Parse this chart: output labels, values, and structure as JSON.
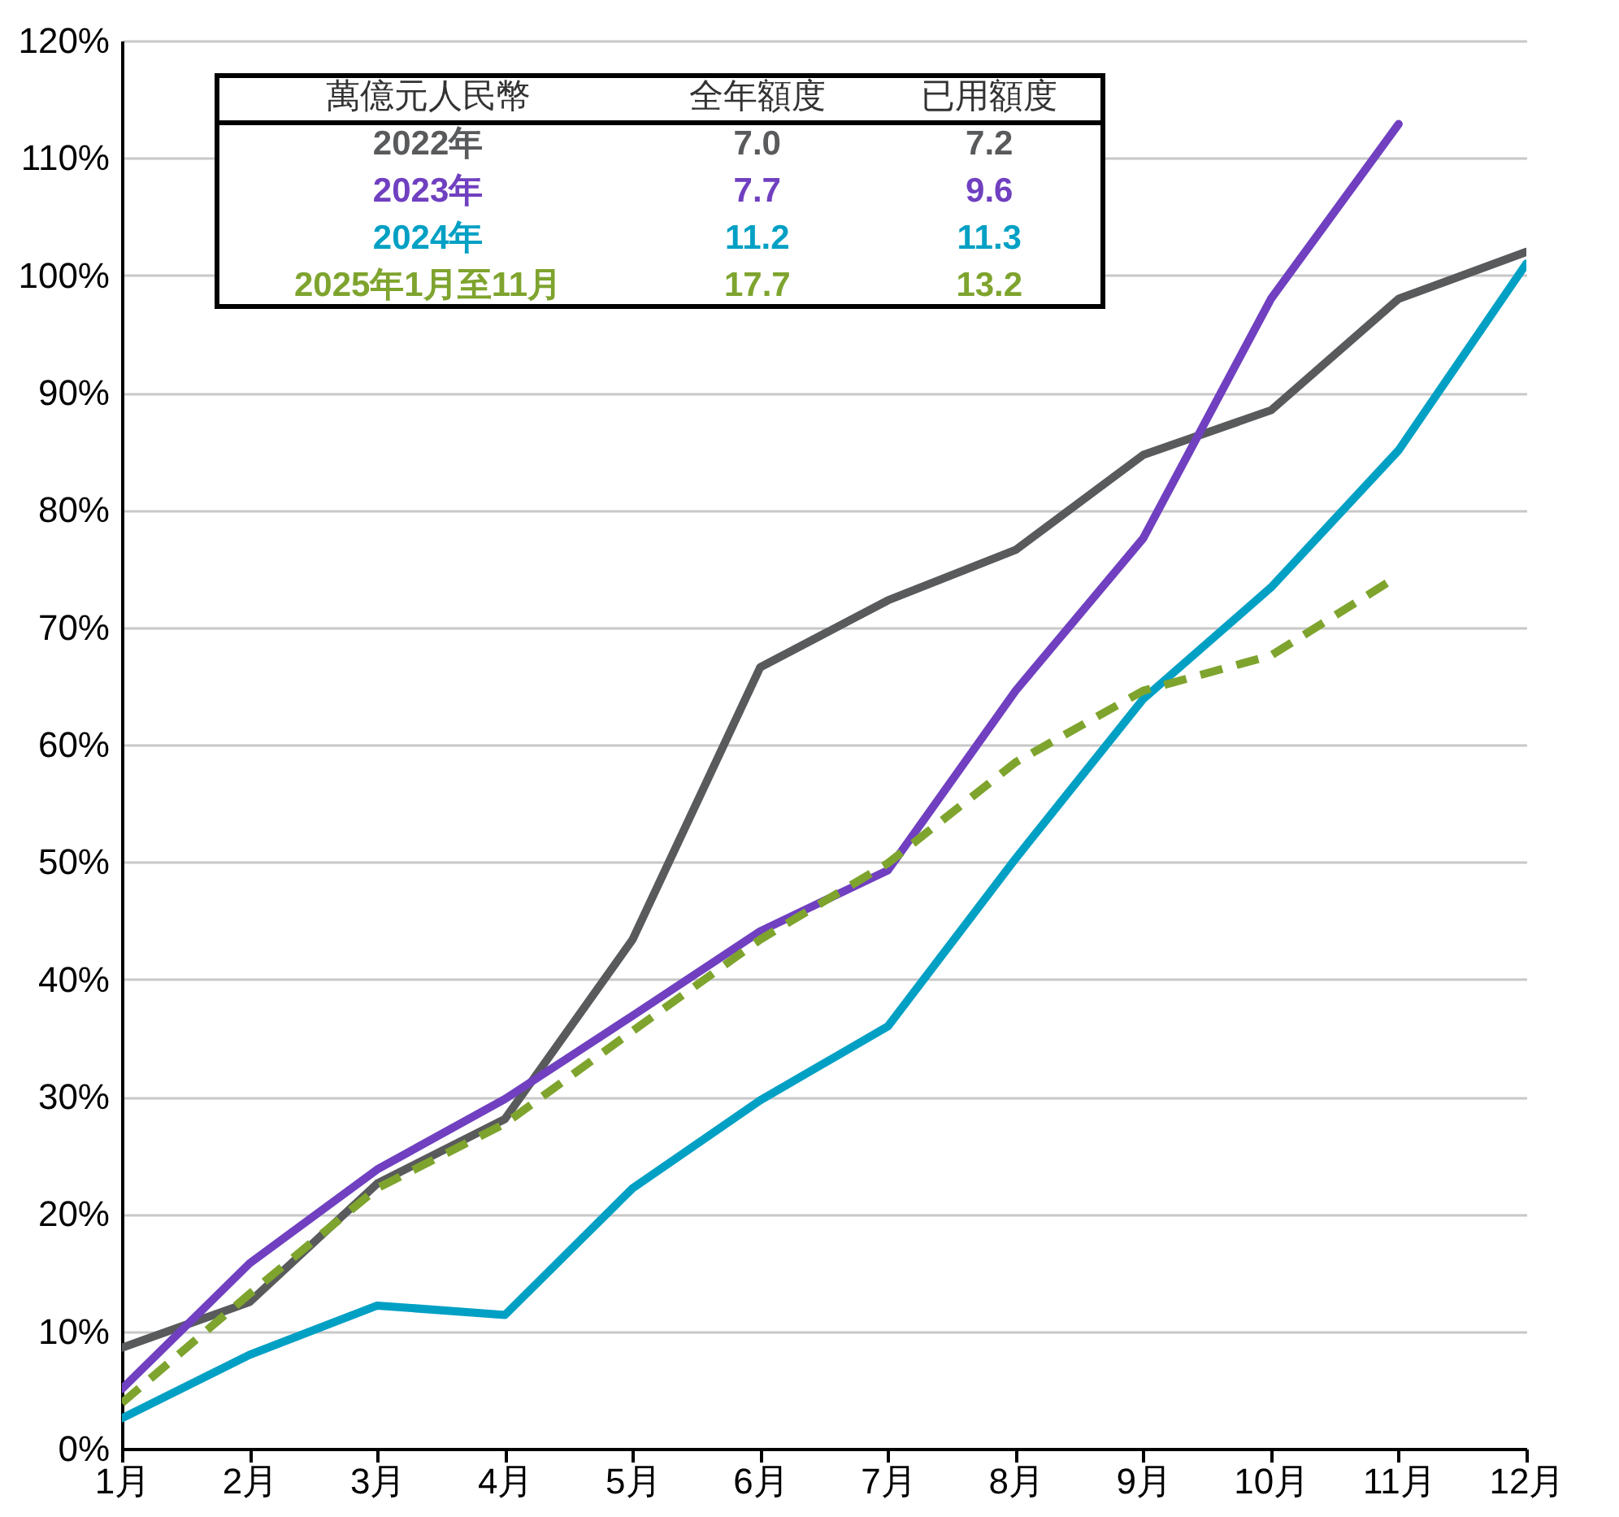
{
  "chart_data": {
    "type": "line",
    "categories": [
      "1月",
      "2月",
      "3月",
      "4月",
      "5月",
      "6月",
      "7月",
      "8月",
      "9月",
      "10月",
      "11月",
      "12月"
    ],
    "series": [
      {
        "name": "2022年",
        "color": "#595a5c",
        "values": [
          8.6,
          12.5,
          22.6,
          28.1,
          43.4,
          66.6,
          72.3,
          76.6,
          84.7,
          88.5,
          98.0,
          102.0
        ]
      },
      {
        "name": "2023年",
        "color": "#7040c0",
        "values": [
          5.1,
          15.8,
          23.8,
          29.8,
          36.9,
          44.1,
          49.3,
          64.6,
          77.6,
          98.0,
          112.9,
          null
        ]
      },
      {
        "name": "2024年",
        "color": "#00a0c4",
        "values": [
          2.6,
          8.0,
          12.2,
          11.4,
          22.2,
          29.7,
          36.0,
          50.3,
          63.9,
          73.4,
          85.1,
          101.0
        ]
      },
      {
        "name": "2025年1月至11月",
        "color": "#7ea42e",
        "line_style": "dashed",
        "values": [
          3.9,
          13.2,
          22.2,
          27.7,
          35.6,
          43.4,
          49.9,
          58.5,
          64.6,
          67.6,
          74.4,
          null
        ]
      }
    ],
    "ylim": [
      0,
      120
    ],
    "yticks": [
      {
        "value": 0,
        "label": "0%"
      },
      {
        "value": 10,
        "label": "10%"
      },
      {
        "value": 20,
        "label": "20%"
      },
      {
        "value": 30,
        "label": "30%"
      },
      {
        "value": 40,
        "label": "40%"
      },
      {
        "value": 50,
        "label": "50%"
      },
      {
        "value": 60,
        "label": "60%"
      },
      {
        "value": 70,
        "label": "70%"
      },
      {
        "value": 80,
        "label": "80%"
      },
      {
        "value": 90,
        "label": "90%"
      },
      {
        "value": 100,
        "label": "100%"
      },
      {
        "value": 110,
        "label": "110%"
      },
      {
        "value": 120,
        "label": "120%"
      }
    ],
    "grid": "y",
    "legend": "top left",
    "annotations": [
      "萬億元人民幣",
      "全年額度",
      "已用額度",
      "7.0",
      "7.2",
      "7.7",
      "9.6",
      "11.2",
      "11.3",
      "17.7",
      "13.2"
    ]
  }
}
